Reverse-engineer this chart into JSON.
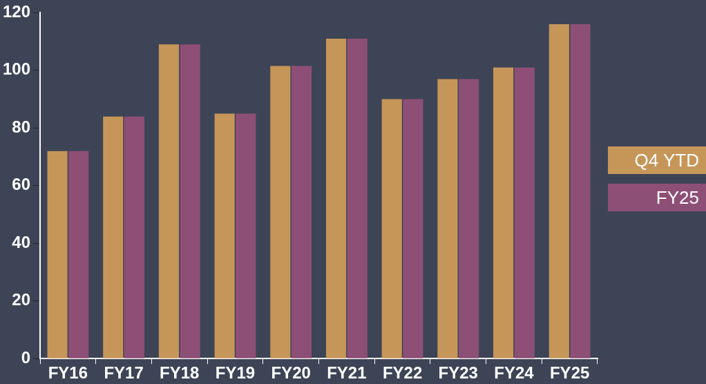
{
  "chart_data": {
    "type": "bar",
    "categories": [
      "FY16",
      "FY17",
      "FY18",
      "FY19",
      "FY20",
      "FY21",
      "FY22",
      "FY23",
      "FY24",
      "FY25"
    ],
    "series": [
      {
        "name": "Q4 YTD",
        "color": "#c69659",
        "values": [
          72,
          84,
          109,
          85,
          101.5,
          111,
          90,
          97,
          101,
          116
        ]
      },
      {
        "name": "FY25",
        "color": "#8e4f76",
        "values": [
          72,
          84,
          109,
          85,
          101.5,
          111,
          90,
          97,
          101,
          116
        ]
      }
    ],
    "ylim": [
      0,
      120
    ],
    "yticks": [
      0,
      20,
      40,
      60,
      80,
      100,
      120
    ],
    "legend": "right"
  }
}
